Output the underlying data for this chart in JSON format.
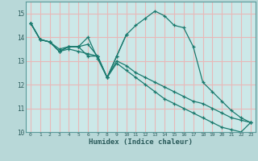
{
  "xlabel": "Humidex (Indice chaleur)",
  "background_color": "#b8d8d8",
  "plot_bg_color": "#cce8e8",
  "grid_color": "#e8b8b8",
  "line_color": "#1a7a6e",
  "xlim": [
    -0.5,
    23.5
  ],
  "ylim": [
    10,
    15.5
  ],
  "yticks": [
    10,
    11,
    12,
    13,
    14,
    15
  ],
  "xticks": [
    0,
    1,
    2,
    3,
    4,
    5,
    6,
    7,
    8,
    9,
    10,
    11,
    12,
    13,
    14,
    15,
    16,
    17,
    18,
    19,
    20,
    21,
    22,
    23
  ],
  "series": [
    [
      14.6,
      13.9,
      13.8,
      13.4,
      13.6,
      13.6,
      13.7,
      13.2,
      12.3,
      13.2,
      14.1,
      14.5,
      14.8,
      15.1,
      14.9,
      14.5,
      14.4,
      13.6,
      12.1,
      11.7,
      11.3,
      10.9,
      10.6,
      10.4
    ],
    [
      14.6,
      13.9,
      13.8,
      13.4,
      13.6,
      13.6,
      14.0,
      13.1,
      12.3,
      13.2,
      14.1,
      null,
      null,
      null,
      null,
      null,
      null,
      null,
      null,
      null,
      null,
      null,
      null,
      null
    ],
    [
      14.6,
      13.9,
      13.8,
      13.5,
      13.6,
      13.6,
      13.2,
      13.2,
      12.3,
      13.0,
      12.8,
      12.5,
      12.3,
      12.1,
      11.9,
      11.7,
      11.5,
      11.3,
      11.2,
      11.0,
      10.8,
      10.6,
      10.5,
      10.4
    ],
    [
      14.6,
      13.9,
      13.8,
      13.4,
      13.5,
      13.4,
      13.3,
      13.2,
      12.3,
      12.9,
      12.6,
      12.3,
      12.0,
      11.7,
      11.4,
      11.2,
      11.0,
      10.8,
      10.6,
      10.4,
      10.2,
      10.1,
      10.0,
      10.4
    ]
  ]
}
